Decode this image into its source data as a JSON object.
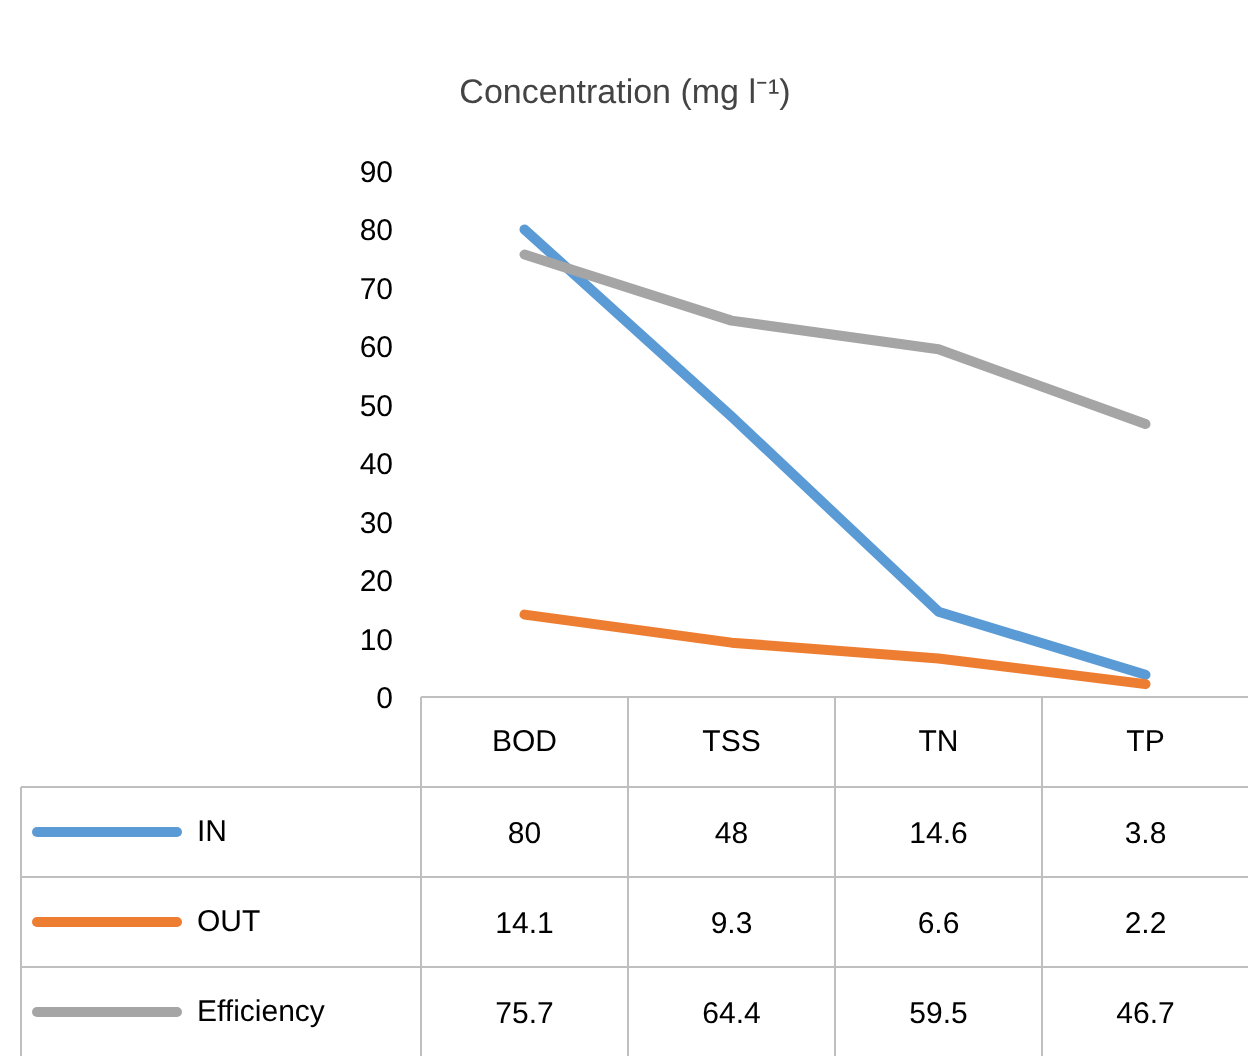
{
  "chart_data": {
    "type": "line",
    "title": "Concentration (mg l⁻¹)",
    "categories": [
      "BOD",
      "TSS",
      "TN",
      "TP"
    ],
    "series": [
      {
        "name": "IN",
        "color": "#5b9bd5",
        "values": [
          80,
          48,
          14.6,
          3.8
        ]
      },
      {
        "name": "OUT",
        "color": "#ed7d31",
        "values": [
          14.1,
          9.3,
          6.6,
          2.2
        ]
      },
      {
        "name": "Efficiency",
        "color": "#a5a5a5",
        "values": [
          75.7,
          64.4,
          59.5,
          46.7
        ]
      }
    ],
    "ylim": [
      0,
      90
    ],
    "yticks": [
      0,
      10,
      20,
      30,
      40,
      50,
      60,
      70,
      80,
      90
    ],
    "grid": false,
    "legend": "bottom",
    "data_labels": true,
    "marker": "none"
  }
}
